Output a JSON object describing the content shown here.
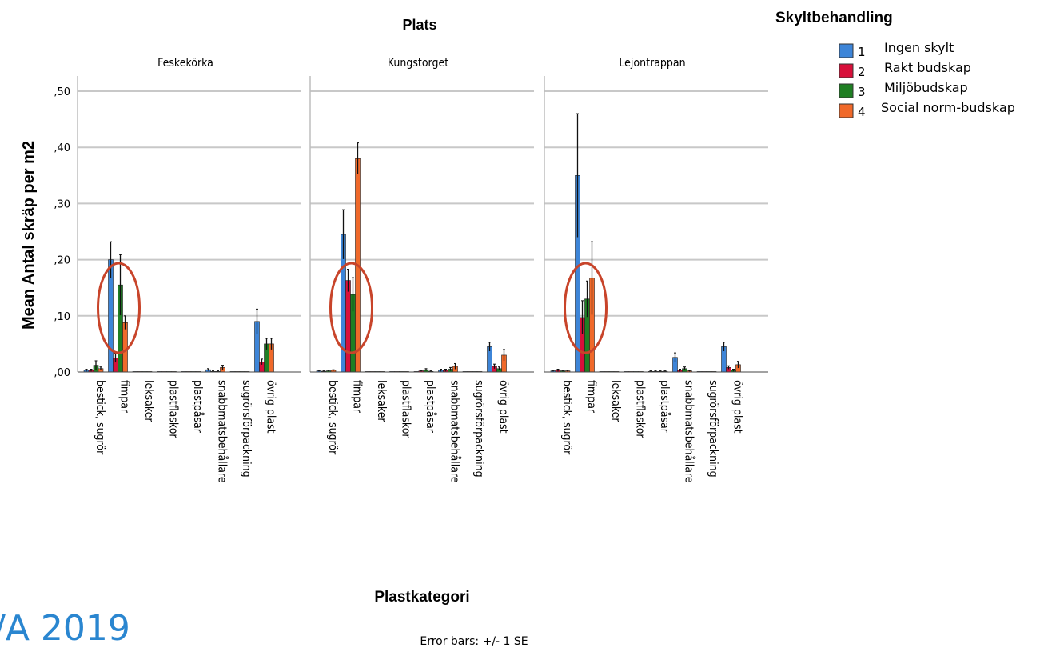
{
  "colors": {
    "1": "#3d85d8",
    "2": "#d8103a",
    "3": "#1f7f23",
    "4": "#f0692a",
    "grid": "#c8c8c8",
    "annotation": "#c8442a",
    "watermark": "#2a86d0"
  },
  "chart_data": {
    "type": "bar",
    "title": "Plats",
    "ylabel": "Mean Antal skräp per m2",
    "xlabel": "Plastkategori",
    "footnote": "Error bars: +/- 1 SE",
    "watermark": "/A 2019",
    "ylim": [
      0,
      0.52
    ],
    "yticks": [
      ",00",
      ",10",
      ",20",
      ",30",
      ",40",
      ",50"
    ],
    "ytick_values": [
      0,
      0.1,
      0.2,
      0.3,
      0.4,
      0.5
    ],
    "legend": {
      "title": "Skyltbehandling",
      "placement": "top-right",
      "entries": [
        {
          "code": "1",
          "label": "Ingen skylt"
        },
        {
          "code": "2",
          "label": "Rakt budskap"
        },
        {
          "code": "3",
          "label": "Miljöbudskap"
        },
        {
          "code": "4",
          "label": "Social norm-budskap"
        }
      ]
    },
    "categories": [
      "bestick, sugrör",
      "fimpar",
      "leksaker",
      "plastflaskor",
      "plastpåsar",
      "snabbmatsbehållare",
      "sugrörsförpackning",
      "övrig plast"
    ],
    "panels": [
      {
        "name": "Feskekörka",
        "series": [
          {
            "code": "1",
            "values": [
              0.003,
              0.2,
              0.0,
              0.0,
              0.0,
              0.004,
              0.0,
              0.09
            ],
            "se": [
              0.002,
              0.032,
              0.0,
              0.0,
              0.0,
              0.002,
              0.0,
              0.022
            ]
          },
          {
            "code": "2",
            "values": [
              0.003,
              0.025,
              0.0,
              0.0,
              0.0,
              0.001,
              0.0,
              0.018
            ],
            "se": [
              0.002,
              0.008,
              0.0,
              0.0,
              0.0,
              0.001,
              0.0,
              0.005
            ]
          },
          {
            "code": "3",
            "values": [
              0.012,
              0.155,
              0.0,
              0.0,
              0.0,
              0.001,
              0.0,
              0.05
            ],
            "se": [
              0.008,
              0.054,
              0.0,
              0.0,
              0.0,
              0.001,
              0.0,
              0.01
            ]
          },
          {
            "code": "4",
            "values": [
              0.006,
              0.088,
              0.0,
              0.0,
              0.0,
              0.008,
              0.0,
              0.05
            ],
            "se": [
              0.003,
              0.012,
              0.0,
              0.0,
              0.0,
              0.004,
              0.0,
              0.01
            ]
          }
        ]
      },
      {
        "name": "Kungstorget",
        "series": [
          {
            "code": "1",
            "values": [
              0.002,
              0.245,
              0.0,
              0.0,
              0.0,
              0.003,
              0.0,
              0.045
            ],
            "se": [
              0.001,
              0.044,
              0.0,
              0.0,
              0.0,
              0.002,
              0.0,
              0.008
            ]
          },
          {
            "code": "2",
            "values": [
              0.001,
              0.163,
              0.0,
              0.0,
              0.002,
              0.003,
              0.0,
              0.01
            ],
            "se": [
              0.001,
              0.02,
              0.0,
              0.0,
              0.001,
              0.002,
              0.0,
              0.004
            ]
          },
          {
            "code": "3",
            "values": [
              0.002,
              0.138,
              0.0,
              0.0,
              0.004,
              0.005,
              0.0,
              0.006
            ],
            "se": [
              0.001,
              0.03,
              0.0,
              0.0,
              0.002,
              0.003,
              0.0,
              0.003
            ]
          },
          {
            "code": "4",
            "values": [
              0.003,
              0.38,
              0.0,
              0.0,
              0.001,
              0.01,
              0.0,
              0.03
            ],
            "se": [
              0.001,
              0.028,
              0.0,
              0.0,
              0.001,
              0.005,
              0.0,
              0.01
            ]
          }
        ]
      },
      {
        "name": "Lejontrappan",
        "series": [
          {
            "code": "1",
            "values": [
              0.002,
              0.35,
              0.0,
              0.0,
              0.001,
              0.026,
              0.0,
              0.045
            ],
            "se": [
              0.001,
              0.11,
              0.0,
              0.0,
              0.001,
              0.008,
              0.0,
              0.008
            ]
          },
          {
            "code": "2",
            "values": [
              0.003,
              0.097,
              0.0,
              0.0,
              0.001,
              0.003,
              0.0,
              0.008
            ],
            "se": [
              0.002,
              0.03,
              0.0,
              0.0,
              0.001,
              0.002,
              0.0,
              0.003
            ]
          },
          {
            "code": "3",
            "values": [
              0.002,
              0.13,
              0.0,
              0.0,
              0.001,
              0.006,
              0.0,
              0.003
            ],
            "se": [
              0.001,
              0.032,
              0.0,
              0.0,
              0.001,
              0.003,
              0.0,
              0.002
            ]
          },
          {
            "code": "4",
            "values": [
              0.002,
              0.167,
              0.0,
              0.0,
              0.001,
              0.002,
              0.0,
              0.013
            ],
            "se": [
              0.001,
              0.065,
              0.0,
              0.0,
              0.001,
              0.001,
              0.0,
              0.006
            ]
          }
        ]
      }
    ]
  }
}
